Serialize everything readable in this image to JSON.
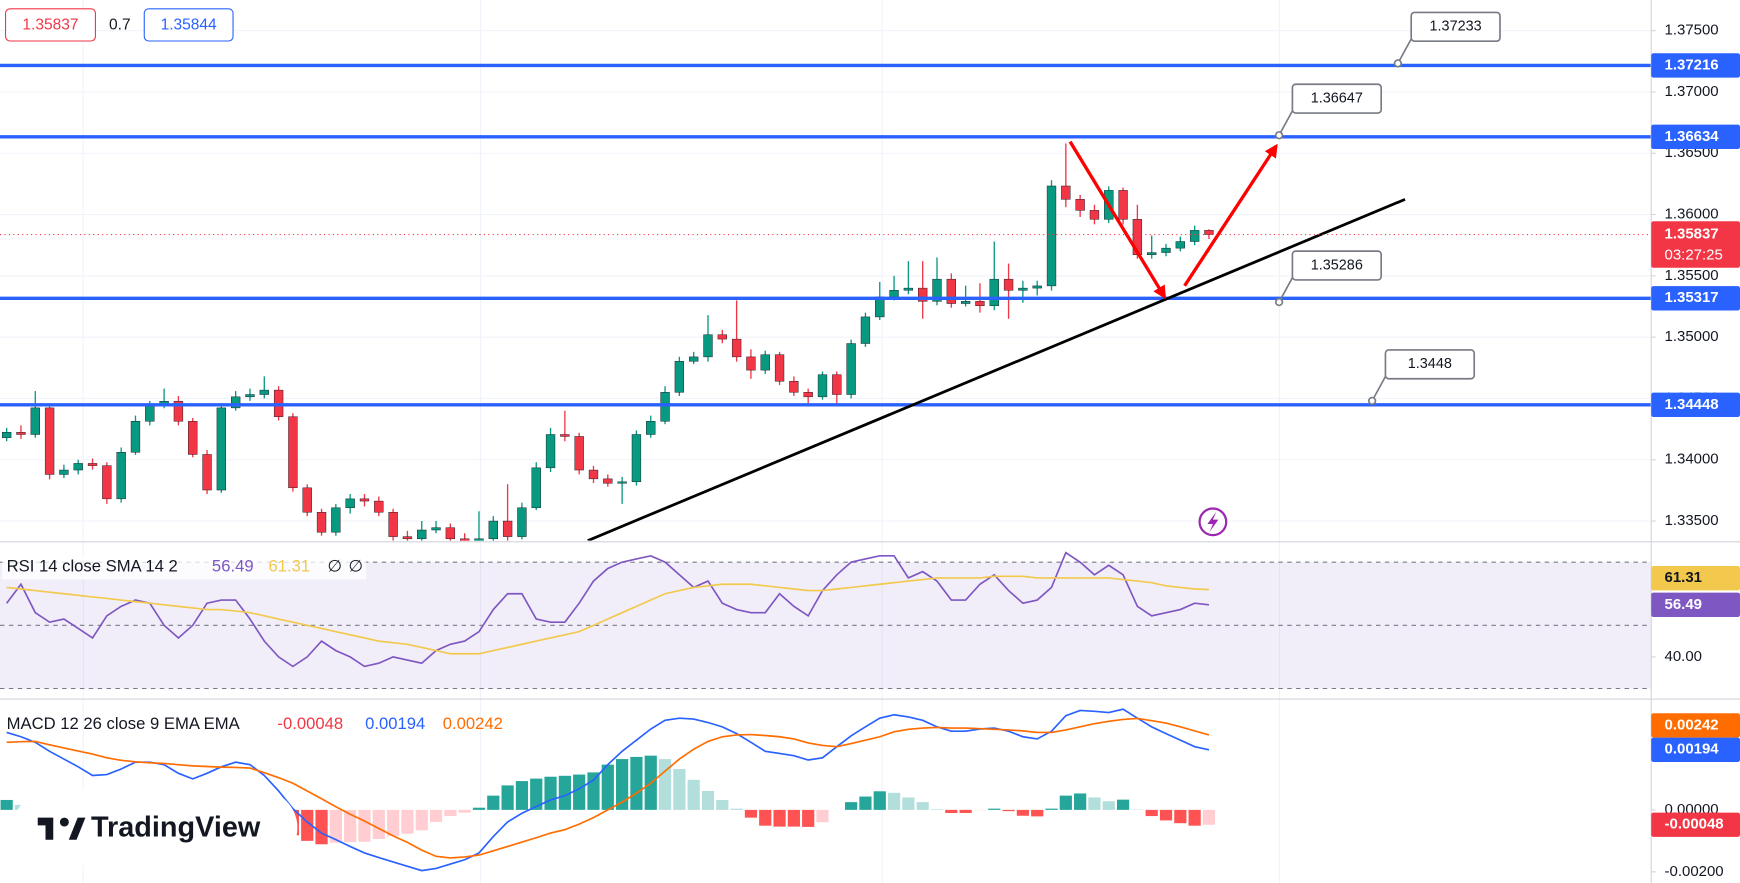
{
  "quote": {
    "bid": 1.35837,
    "spread": 0.7,
    "ask": 1.35844
  },
  "logo": "TradingView",
  "chart_data": [
    {
      "type": "candlestick",
      "xlim": [
        -0.465,
        114.9
      ],
      "ylim": [
        1.3334,
        1.3775
      ],
      "yticks": [
        {
          "value": 1.375,
          "label": "1.37500"
        },
        {
          "value": 1.37,
          "label": "1.37000"
        },
        {
          "value": 1.365,
          "label": "1.36500"
        },
        {
          "value": 1.36,
          "label": "1.36000"
        },
        {
          "value": 1.355,
          "label": "1.35500"
        },
        {
          "value": 1.35,
          "label": "1.35000"
        },
        {
          "value": 1.345,
          "label": "1.34500"
        },
        {
          "value": 1.34,
          "label": "1.34000"
        },
        {
          "value": 1.335,
          "label": "1.33500"
        }
      ],
      "grid": true,
      "up_color": "#089981",
      "down_color": "#f23645",
      "countdown": "03:27:25",
      "levels": {
        "values": [
          1.37216,
          1.36634,
          1.35317,
          1.34448
        ],
        "color": "#2962ff"
      },
      "callouts": [
        {
          "x": 97.2,
          "value": 1.37233
        },
        {
          "x": 88.9,
          "value": 1.36647
        },
        {
          "x": 88.9,
          "value": 1.35286
        },
        {
          "x": 95.4,
          "value": 1.3448
        }
      ],
      "trend_line": {
        "x": [
          40.6,
          97.7
        ],
        "y": [
          1.3334,
          1.36124
        ],
        "color": "#000000"
      },
      "arrows": [
        {
          "x": [
            74.3,
            80.9
          ],
          "y": [
            1.36595,
            1.35328
          ],
          "color": "#ff0000"
        },
        {
          "x": [
            82.3,
            88.7
          ],
          "y": [
            1.35419,
            1.36559
          ],
          "color": "#ff0000"
        }
      ],
      "ohlc": [
        [
          1.3418,
          1.3426,
          1.3415,
          1.34224
        ],
        [
          1.34224,
          1.3428,
          1.3417,
          1.34206
        ],
        [
          1.34206,
          1.3456,
          1.3418,
          1.34423
        ],
        [
          1.34423,
          1.3446,
          1.3384,
          1.3388
        ],
        [
          1.3388,
          1.3396,
          1.3385,
          1.33916
        ],
        [
          1.33916,
          1.34,
          1.3388,
          1.3397
        ],
        [
          1.3397,
          1.3401,
          1.3392,
          1.33952
        ],
        [
          1.33952,
          1.3398,
          1.3364,
          1.33681
        ],
        [
          1.33681,
          1.341,
          1.3365,
          1.34061
        ],
        [
          1.34061,
          1.3436,
          1.3404,
          1.34314
        ],
        [
          1.34314,
          1.3448,
          1.3428,
          1.34441
        ],
        [
          1.34441,
          1.3458,
          1.3442,
          1.34477
        ],
        [
          1.34477,
          1.3452,
          1.3428,
          1.34314
        ],
        [
          1.34314,
          1.3434,
          1.3402,
          1.34043
        ],
        [
          1.34043,
          1.3408,
          1.3372,
          1.33753
        ],
        [
          1.33753,
          1.3446,
          1.3373,
          1.34423
        ],
        [
          1.34423,
          1.3456,
          1.344,
          1.34513
        ],
        [
          1.34513,
          1.3458,
          1.3448,
          1.34532
        ],
        [
          1.34532,
          1.3468,
          1.345,
          1.34568
        ],
        [
          1.34568,
          1.346,
          1.3432,
          1.34351
        ],
        [
          1.34351,
          1.3438,
          1.3374,
          1.33771
        ],
        [
          1.33771,
          1.338,
          1.3354,
          1.33572
        ],
        [
          1.33572,
          1.336,
          1.3338,
          1.33409
        ],
        [
          1.33409,
          1.3364,
          1.3338,
          1.33608
        ],
        [
          1.33608,
          1.3372,
          1.3356,
          1.33681
        ],
        [
          1.33681,
          1.3372,
          1.3362,
          1.33663
        ],
        [
          1.33663,
          1.337,
          1.3354,
          1.33572
        ],
        [
          1.33572,
          1.336,
          1.3334,
          1.33373
        ],
        [
          1.33373,
          1.3342,
          1.3332,
          1.33355
        ],
        [
          1.33355,
          1.335,
          1.3332,
          1.33427
        ],
        [
          1.33427,
          1.335,
          1.334,
          1.33446
        ],
        [
          1.33446,
          1.3348,
          1.3332,
          1.33355
        ],
        [
          1.33355,
          1.334,
          1.333,
          1.33337
        ],
        [
          1.33337,
          1.3358,
          1.333,
          1.33355
        ],
        [
          1.33355,
          1.3354,
          1.3332,
          1.335
        ],
        [
          1.335,
          1.338,
          1.3334,
          1.33373
        ],
        [
          1.33373,
          1.3365,
          1.3335,
          1.33608
        ],
        [
          1.33608,
          1.3398,
          1.3359,
          1.33934
        ],
        [
          1.33934,
          1.3426,
          1.339,
          1.34206
        ],
        [
          1.34206,
          1.344,
          1.3415,
          1.3419
        ],
        [
          1.3419,
          1.3422,
          1.3388,
          1.33916
        ],
        [
          1.33916,
          1.3395,
          1.3381,
          1.33844
        ],
        [
          1.33844,
          1.3388,
          1.3378,
          1.33808
        ],
        [
          1.33808,
          1.3386,
          1.3364,
          1.3382
        ],
        [
          1.3382,
          1.3424,
          1.3379,
          1.34206
        ],
        [
          1.34206,
          1.3436,
          1.3418,
          1.34314
        ],
        [
          1.34314,
          1.346,
          1.3429,
          1.3455
        ],
        [
          1.3455,
          1.3484,
          1.3452,
          1.34803
        ],
        [
          1.34803,
          1.3488,
          1.3478,
          1.34839
        ],
        [
          1.34839,
          1.3518,
          1.348,
          1.3502
        ],
        [
          1.3502,
          1.3506,
          1.3495,
          1.34984
        ],
        [
          1.34984,
          1.353,
          1.348,
          1.34839
        ],
        [
          1.34839,
          1.349,
          1.3466,
          1.34731
        ],
        [
          1.34731,
          1.3489,
          1.347,
          1.34857
        ],
        [
          1.34857,
          1.3488,
          1.3461,
          1.3464
        ],
        [
          1.3464,
          1.3468,
          1.3452,
          1.3455
        ],
        [
          1.3455,
          1.3458,
          1.3446,
          1.34513
        ],
        [
          1.34513,
          1.3472,
          1.3449,
          1.34694
        ],
        [
          1.34694,
          1.3472,
          1.3446,
          1.34532
        ],
        [
          1.34532,
          1.3498,
          1.345,
          1.34948
        ],
        [
          1.34948,
          1.352,
          1.3492,
          1.35165
        ],
        [
          1.35165,
          1.3545,
          1.3514,
          1.35328
        ],
        [
          1.35328,
          1.355,
          1.353,
          1.35382
        ],
        [
          1.35382,
          1.3562,
          1.3535,
          1.354
        ],
        [
          1.354,
          1.3562,
          1.3515,
          1.35292
        ],
        [
          1.35292,
          1.3565,
          1.3526,
          1.35473
        ],
        [
          1.35473,
          1.3552,
          1.3524,
          1.35274
        ],
        [
          1.35274,
          1.3542,
          1.3525,
          1.35292
        ],
        [
          1.35292,
          1.3544,
          1.352,
          1.35256
        ],
        [
          1.35256,
          1.3578,
          1.3522,
          1.35473
        ],
        [
          1.35473,
          1.356,
          1.3515,
          1.35382
        ],
        [
          1.35382,
          1.3546,
          1.3528,
          1.354
        ],
        [
          1.354,
          1.3546,
          1.3534,
          1.35418
        ],
        [
          1.35418,
          1.3628,
          1.3538,
          1.36233
        ],
        [
          1.36233,
          1.3658,
          1.3606,
          1.36124
        ],
        [
          1.36124,
          1.3616,
          1.3598,
          1.36034
        ],
        [
          1.36034,
          1.3608,
          1.3592,
          1.35961
        ],
        [
          1.35961,
          1.3623,
          1.3593,
          1.36197
        ],
        [
          1.36197,
          1.3622,
          1.3592,
          1.35961
        ],
        [
          1.35961,
          1.3608,
          1.3564,
          1.35672
        ],
        [
          1.35672,
          1.3583,
          1.3564,
          1.3569
        ],
        [
          1.3569,
          1.3576,
          1.3566,
          1.35726
        ],
        [
          1.35726,
          1.3582,
          1.357,
          1.3578
        ],
        [
          1.3578,
          1.3591,
          1.3575,
          1.35871
        ],
        [
          1.35871,
          1.3588,
          1.358,
          1.35837
        ]
      ]
    },
    {
      "type": "line",
      "title": "RSI 14 close SMA 14 2",
      "flags": [
        "∅",
        "∅"
      ],
      "ylim": [
        27,
        76.1
      ],
      "yticks": [
        {
          "value": 40,
          "label": "40.00"
        }
      ],
      "band": [
        30,
        70
      ],
      "band_color": "#7e57c2",
      "guides": [
        70,
        50,
        30
      ],
      "series": [
        {
          "color": "#7e57c2",
          "values": [
            57,
            63,
            54,
            51,
            52,
            49,
            46,
            53,
            56,
            58,
            57,
            50,
            46,
            50,
            57,
            58,
            58,
            52,
            45,
            40,
            37,
            40,
            45,
            42,
            40,
            37,
            38,
            40,
            39,
            38,
            42,
            44,
            45,
            48,
            55,
            60,
            60,
            52,
            51,
            51,
            57,
            64,
            68,
            70,
            71,
            72,
            70,
            66,
            62,
            64,
            57,
            55,
            54,
            54,
            60,
            56,
            53,
            61,
            66,
            70,
            71,
            72,
            72,
            65,
            67,
            64,
            58,
            58,
            63,
            66,
            61,
            57,
            58,
            62,
            73,
            70,
            66,
            69,
            66,
            56,
            53,
            54,
            55,
            57,
            56.49
          ]
        },
        {
          "color": "#f2c94c",
          "values": [
            62,
            61.5,
            61,
            60.5,
            60,
            59.5,
            59,
            58.5,
            58,
            57.5,
            57,
            56.5,
            56,
            55.5,
            55,
            55,
            54.5,
            54,
            53,
            52,
            51,
            50,
            49,
            48,
            47,
            46,
            45,
            44.5,
            44,
            43,
            42,
            41,
            41,
            41,
            42,
            43,
            44,
            45,
            46,
            47,
            48,
            50,
            52,
            54,
            56,
            58,
            60,
            61,
            62,
            62.5,
            63,
            63,
            63,
            62.5,
            62,
            61.5,
            61,
            61,
            61.5,
            62,
            62.5,
            63,
            63.5,
            64,
            64.5,
            65,
            65,
            65,
            65,
            65.5,
            65.5,
            65.5,
            65,
            65,
            65,
            65,
            65,
            65,
            64.5,
            64,
            63.5,
            62.5,
            62,
            61.5,
            61.31
          ]
        }
      ]
    },
    {
      "type": "macd",
      "title": "MACD 12 26 close 9 EMA EMA",
      "ylim": [
        -0.00236,
        0.00354
      ],
      "yticks": [
        {
          "value": 0,
          "label": "0.00000"
        },
        {
          "value": -0.002,
          "label": "-0.00200"
        }
      ],
      "hist_colors": [
        "#26a69a",
        "#b2dfdb",
        "#ffcdd2",
        "#ff5252"
      ],
      "histogram": [
        0.00032,
        0.00016,
        -3e-05,
        -0.00021,
        -0.00036,
        -0.00051,
        -0.00069,
        -0.00054,
        -0.00028,
        -1e-05,
        2e-05,
        -4e-05,
        -0.00028,
        -0.00042,
        -0.00022,
        1e-05,
        0.00017,
        0.00011,
        -9e-05,
        -0.00043,
        -0.00082,
        -0.001,
        -0.00111,
        -0.00106,
        -0.00104,
        -0.00103,
        -0.00094,
        -0.00084,
        -0.00077,
        -0.00066,
        -0.00039,
        -0.0002,
        -9e-05,
        7e-05,
        0.00046,
        0.00079,
        0.00093,
        0.00101,
        0.00107,
        0.0011,
        0.00114,
        0.00121,
        0.00146,
        0.00164,
        0.00171,
        0.00175,
        0.00164,
        0.00132,
        0.00097,
        0.00061,
        0.00032,
        4e-05,
        -0.00025,
        -0.00051,
        -0.00054,
        -0.00054,
        -0.00055,
        -0.0004,
        0,
        0.00025,
        0.00043,
        0.0006,
        0.00055,
        0.0004,
        0.00025,
        2e-05,
        -0.0001,
        -0.0001,
        -1e-05,
        4e-05,
        -4e-05,
        -0.00019,
        -0.00021,
        4e-05,
        0.00046,
        0.00053,
        0.0004,
        0.00028,
        0.00033,
        1e-05,
        -0.0002,
        -0.00034,
        -0.00043,
        -0.00051,
        -0.00048
      ],
      "hist_label_color": "#f23645",
      "series": [
        {
          "color": "#2962ff",
          "values": [
            0.0025,
            0.00236,
            0.00218,
            0.00189,
            0.00164,
            0.00139,
            0.00111,
            0.00114,
            0.00132,
            0.00154,
            0.00154,
            0.00146,
            0.00118,
            0.001,
            0.00118,
            0.00139,
            0.00154,
            0.00146,
            0.00111,
            0.00061,
            4e-05,
            -0.00039,
            -0.00075,
            -0.00096,
            -0.00118,
            -0.00139,
            -0.00154,
            -0.00168,
            -0.00182,
            -0.00196,
            -0.00189,
            -0.00175,
            -0.00161,
            -0.00139,
            -0.00086,
            -0.00039,
            -0.00011,
            0.00011,
            0.00032,
            0.00046,
            0.00068,
            0.00096,
            0.00146,
            0.00189,
            0.00225,
            0.00261,
            0.00289,
            0.00296,
            0.00293,
            0.00282,
            0.00268,
            0.00246,
            0.00218,
            0.00189,
            0.00182,
            0.00175,
            0.00161,
            0.00168,
            0.00204,
            0.00239,
            0.00268,
            0.00296,
            0.00307,
            0.003,
            0.00289,
            0.00268,
            0.00254,
            0.00254,
            0.00261,
            0.00264,
            0.00254,
            0.00236,
            0.00229,
            0.00254,
            0.00304,
            0.00321,
            0.00318,
            0.00314,
            0.00325,
            0.00296,
            0.00268,
            0.00246,
            0.00225,
            0.00204,
            0.00194
          ]
        },
        {
          "color": "#ff6d00",
          "values": [
            0.00218,
            0.0022,
            0.00221,
            0.0021,
            0.002,
            0.0019,
            0.0018,
            0.00168,
            0.0016,
            0.00155,
            0.00152,
            0.0015,
            0.00146,
            0.00142,
            0.0014,
            0.00138,
            0.00137,
            0.00135,
            0.0012,
            0.00104,
            0.00086,
            0.00061,
            0.00036,
            0.0001,
            -0.00014,
            -0.00036,
            -0.0006,
            -0.00084,
            -0.00105,
            -0.0013,
            -0.0015,
            -0.00155,
            -0.00152,
            -0.00146,
            -0.00132,
            -0.00118,
            -0.00104,
            -0.0009,
            -0.00075,
            -0.00064,
            -0.00046,
            -0.00025,
            0,
            0.00025,
            0.00054,
            0.00086,
            0.00125,
            0.00164,
            0.00196,
            0.00221,
            0.00236,
            0.00242,
            0.00243,
            0.0024,
            0.00236,
            0.00229,
            0.00216,
            0.00208,
            0.00204,
            0.00214,
            0.00225,
            0.00236,
            0.00252,
            0.0026,
            0.00264,
            0.00266,
            0.00264,
            0.00264,
            0.00262,
            0.0026,
            0.00258,
            0.00255,
            0.0025,
            0.0025,
            0.00258,
            0.00268,
            0.00278,
            0.00286,
            0.00292,
            0.00295,
            0.00288,
            0.0028,
            0.00268,
            0.00255,
            0.00242
          ]
        }
      ]
    }
  ]
}
